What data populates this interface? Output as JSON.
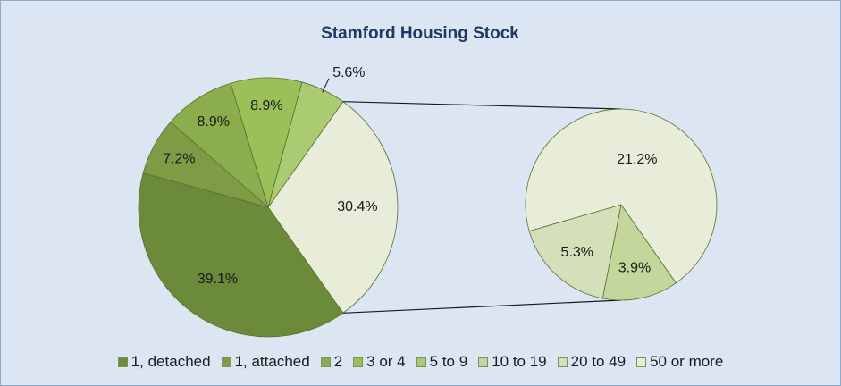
{
  "chart_data": {
    "type": "pie-of-pie",
    "title": "Stamford Housing Stock",
    "primary": {
      "categories": [
        "1, detached",
        "1, attached",
        "2",
        "3 or 4",
        "5 to 9"
      ],
      "values": [
        39.1,
        7.2,
        8.9,
        8.9,
        5.6
      ],
      "value_labels": [
        "39.1%",
        "7.2%",
        "8.9%",
        "8.9%",
        "5.6%"
      ],
      "colors": [
        "#6b8a3a",
        "#7d9c45",
        "#8bad4e",
        "#9bbf59",
        "#abcb73"
      ]
    },
    "secondary": {
      "categories": [
        "10 to 19",
        "20 to 49",
        "50 or more"
      ],
      "values": [
        3.9,
        5.3,
        21.2
      ],
      "value_labels": [
        "3.9%",
        "5.3%",
        "21.2%"
      ],
      "colors": [
        "#c3d69b",
        "#d5e0bb",
        "#e7edd8"
      ]
    },
    "other": {
      "value": 30.4,
      "value_label": "30.4%",
      "color": "#e7edd8"
    }
  }
}
